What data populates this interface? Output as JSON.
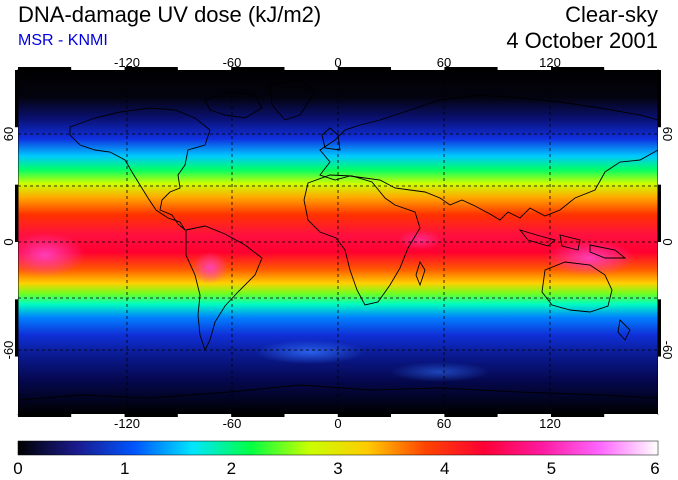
{
  "header": {
    "title": "DNA-damage UV dose (kJ/m2)",
    "subtitle": "MSR - KNMI",
    "sky_condition": "Clear-sky",
    "date": "4 October 2001"
  },
  "map": {
    "longitude_ticks": [
      -120,
      -60,
      0,
      60,
      120
    ],
    "longitude_labels": [
      "-120",
      "-60",
      "0",
      "60",
      "120"
    ],
    "latitude_ticks": [
      60,
      0,
      -60
    ],
    "latitude_labels": [
      "60",
      "0",
      "-60"
    ],
    "grid_lines": true,
    "extent": {
      "lon": [
        -180,
        180
      ],
      "lat": [
        -90,
        90
      ]
    }
  },
  "colorbar": {
    "min": 0,
    "max": 6,
    "labels": [
      "0",
      "1",
      "2",
      "3",
      "4",
      "5",
      "6"
    ],
    "colors": [
      "#000000",
      "#1a1a8c",
      "#0055ff",
      "#00e5ff",
      "#00ff44",
      "#c8ff00",
      "#ffcc00",
      "#ff4400",
      "#ff0033",
      "#ff1aa0",
      "#ff66ff",
      "#ffffff"
    ]
  }
}
